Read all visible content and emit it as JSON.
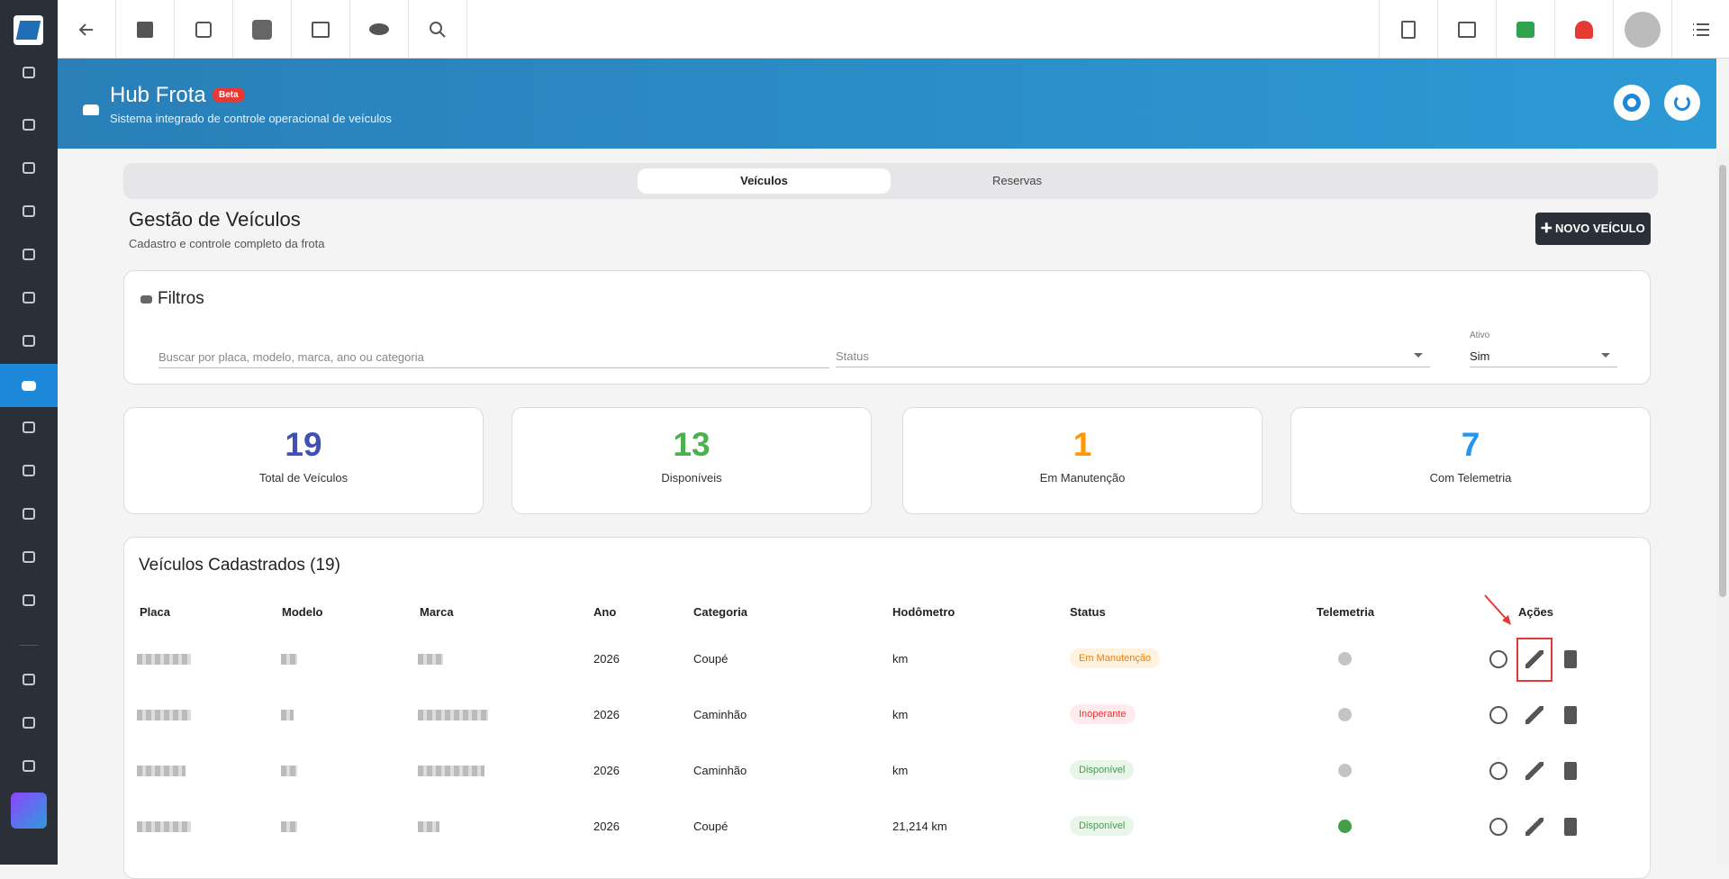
{
  "header": {
    "title": "Hub Frota",
    "badge": "Beta",
    "subtitle": "Sistema integrado de controle operacional de veículos"
  },
  "tabs": [
    "Veículos",
    "Reservas"
  ],
  "section": {
    "title": "Gestão de Veículos",
    "subtitle": "Cadastro e controle completo da frota",
    "button": "NOVO VEÍCULO"
  },
  "filters": {
    "title": "Filtros",
    "search_placeholder": "Buscar por placa, modelo, marca, ano ou categoria",
    "status_label": "Status",
    "ativo_label": "Ativo",
    "ativo_value": "Sim"
  },
  "stats": [
    {
      "value": "19",
      "label": "Total de Veículos",
      "color": "#3f51b5"
    },
    {
      "value": "13",
      "label": "Disponíveis",
      "color": "#4caf50"
    },
    {
      "value": "1",
      "label": "Em Manutenção",
      "color": "#ff9800"
    },
    {
      "value": "7",
      "label": "Com Telemetria",
      "color": "#2196f3"
    }
  ],
  "table": {
    "title": "Veículos Cadastrados (19)",
    "columns": [
      "Placa",
      "Modelo",
      "Marca",
      "Ano",
      "Categoria",
      "Hodômetro",
      "Status",
      "Telemetria",
      "Ações"
    ],
    "rows": [
      {
        "ano": "2026",
        "categoria": "Coupé",
        "hodometro": "km",
        "status": "Em Manutenção",
        "status_color": "#f57c00",
        "status_bg": "#fff3e0",
        "telemetria": false
      },
      {
        "ano": "2026",
        "categoria": "Caminhão",
        "hodometro": "km",
        "status": "Inoperante",
        "status_color": "#e53935",
        "status_bg": "#ffebee",
        "telemetria": false
      },
      {
        "ano": "2026",
        "categoria": "Caminhão",
        "hodometro": "km",
        "status": "Disponível",
        "status_color": "#43a047",
        "status_bg": "#e8f5e9",
        "telemetria": false
      },
      {
        "ano": "2026",
        "categoria": "Coupé",
        "hodometro": "21,214 km",
        "status": "Disponível",
        "status_color": "#43a047",
        "status_bg": "#e8f5e9",
        "telemetria": true
      }
    ]
  }
}
